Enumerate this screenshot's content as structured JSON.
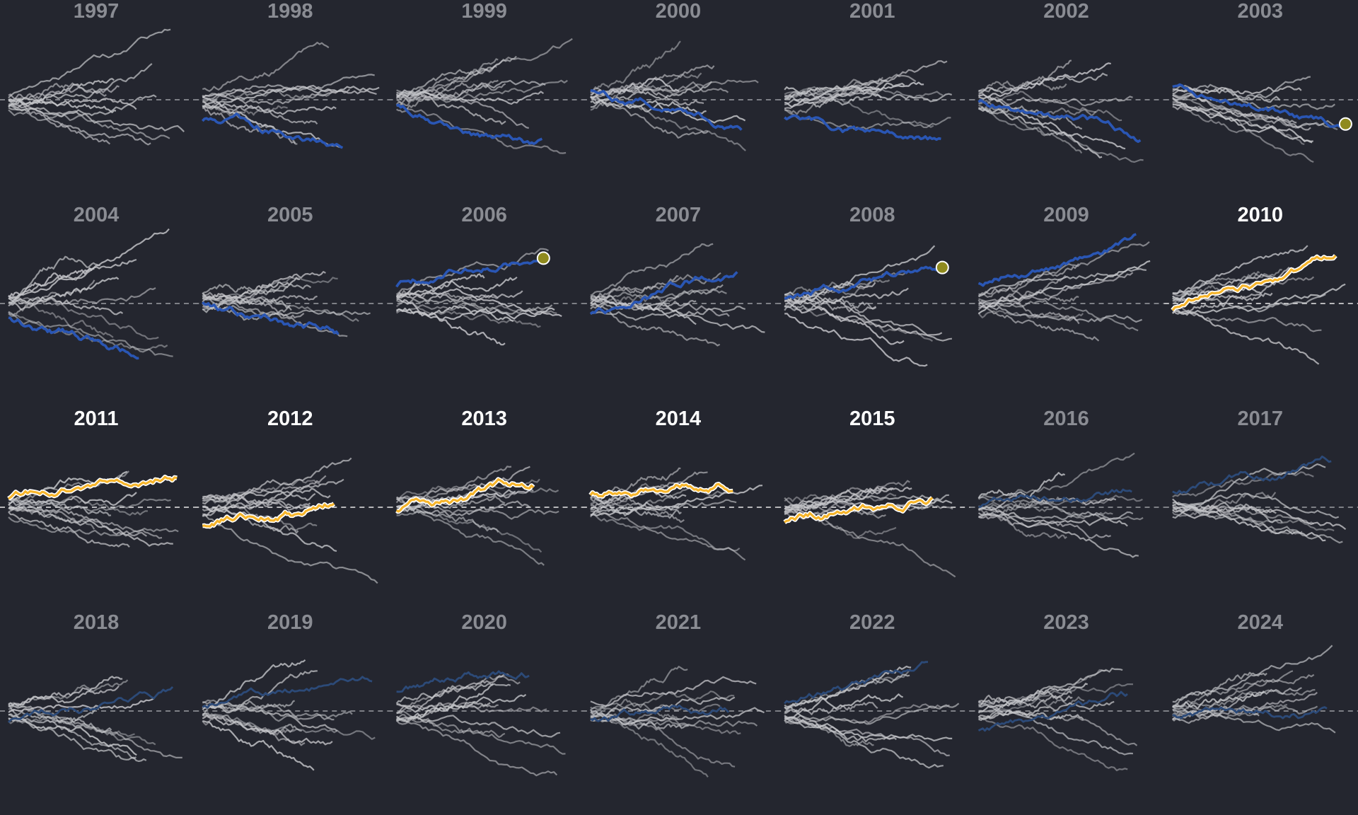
{
  "chart_data": {
    "type": "line",
    "layout": "small-multiples",
    "columns": 7,
    "baseline": "dashed-horizontal",
    "colors": {
      "background": "#24262f",
      "label_default": "#8a8c93",
      "label_highlight": "#ffffff",
      "other_series": "#c6c7cb",
      "focus_series": "#2a56b4",
      "focus_series_faded": "#2c4a78",
      "highlight_series": "#f6b52c",
      "highlight_outline": "#ffffff",
      "end_marker": "#8f8a1e"
    },
    "panels": [
      {
        "year": "1997",
        "focus": "none"
      },
      {
        "year": "1998",
        "focus": "blue"
      },
      {
        "year": "1999",
        "focus": "blue"
      },
      {
        "year": "2000",
        "focus": "blue"
      },
      {
        "year": "2001",
        "focus": "blue"
      },
      {
        "year": "2002",
        "focus": "blue"
      },
      {
        "year": "2003",
        "focus": "blue",
        "end_marker": true
      },
      {
        "year": "2004",
        "focus": "blue"
      },
      {
        "year": "2005",
        "focus": "blue"
      },
      {
        "year": "2006",
        "focus": "blue",
        "end_marker": true
      },
      {
        "year": "2007",
        "focus": "blue"
      },
      {
        "year": "2008",
        "focus": "blue",
        "end_marker": true
      },
      {
        "year": "2009",
        "focus": "blue"
      },
      {
        "year": "2010",
        "focus": "highlight",
        "highlight_label": true
      },
      {
        "year": "2011",
        "focus": "highlight",
        "highlight_label": true
      },
      {
        "year": "2012",
        "focus": "highlight",
        "highlight_label": true
      },
      {
        "year": "2013",
        "focus": "highlight",
        "highlight_label": true
      },
      {
        "year": "2014",
        "focus": "highlight",
        "highlight_label": true
      },
      {
        "year": "2015",
        "focus": "highlight",
        "highlight_label": true
      },
      {
        "year": "2016",
        "focus": "faded"
      },
      {
        "year": "2017",
        "focus": "faded"
      },
      {
        "year": "2018",
        "focus": "faded"
      },
      {
        "year": "2019",
        "focus": "faded"
      },
      {
        "year": "2020",
        "focus": "faded"
      },
      {
        "year": "2021",
        "focus": "faded"
      },
      {
        "year": "2022",
        "focus": "faded"
      },
      {
        "year": "2023",
        "focus": "faded"
      },
      {
        "year": "2024",
        "focus": "faded"
      }
    ]
  }
}
